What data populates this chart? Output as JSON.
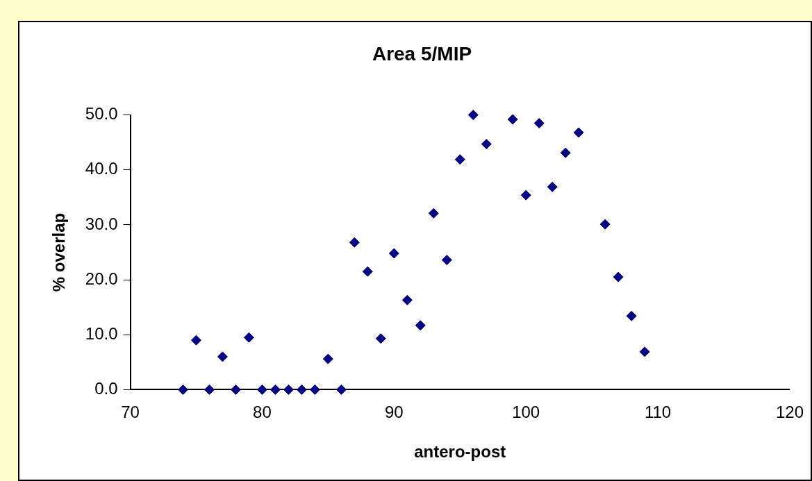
{
  "chart_data": {
    "type": "scatter",
    "title": "Area 5/MIP",
    "xlabel": "antero-post",
    "ylabel": "% overlap",
    "x": [
      74,
      75,
      76,
      77,
      78,
      79,
      80,
      81,
      82,
      83,
      84,
      85,
      86,
      87,
      88,
      89,
      90,
      91,
      92,
      93,
      94,
      95,
      96,
      97,
      99,
      100,
      101,
      102,
      103,
      104,
      106,
      107,
      108,
      109
    ],
    "series": [
      {
        "color": "#000080",
        "values": [
          0,
          9.0,
          0,
          6.0,
          0,
          9.5,
          0,
          0,
          0,
          0,
          0,
          5.6,
          0,
          26.8,
          21.5,
          9.3,
          24.8,
          16.3,
          11.7,
          32.1,
          23.6,
          41.9,
          50.0,
          44.7,
          49.2,
          35.4,
          48.5,
          36.9,
          43.1,
          46.8,
          30.1,
          20.5,
          13.4,
          6.9
        ]
      }
    ],
    "xlim": [
      70,
      120
    ],
    "xticks": [
      70,
      80,
      90,
      100,
      110,
      120
    ],
    "ylim": [
      0,
      50
    ],
    "yticks": [
      {
        "value": 0,
        "label": "0.0"
      },
      {
        "value": 10,
        "label": "10.0"
      },
      {
        "value": 20,
        "label": "20.0"
      },
      {
        "value": 30,
        "label": "30.0"
      },
      {
        "value": 40,
        "label": "40.0"
      },
      {
        "value": 50,
        "label": "50.0"
      }
    ],
    "grid": false,
    "legend": false,
    "marker": "diamond"
  }
}
